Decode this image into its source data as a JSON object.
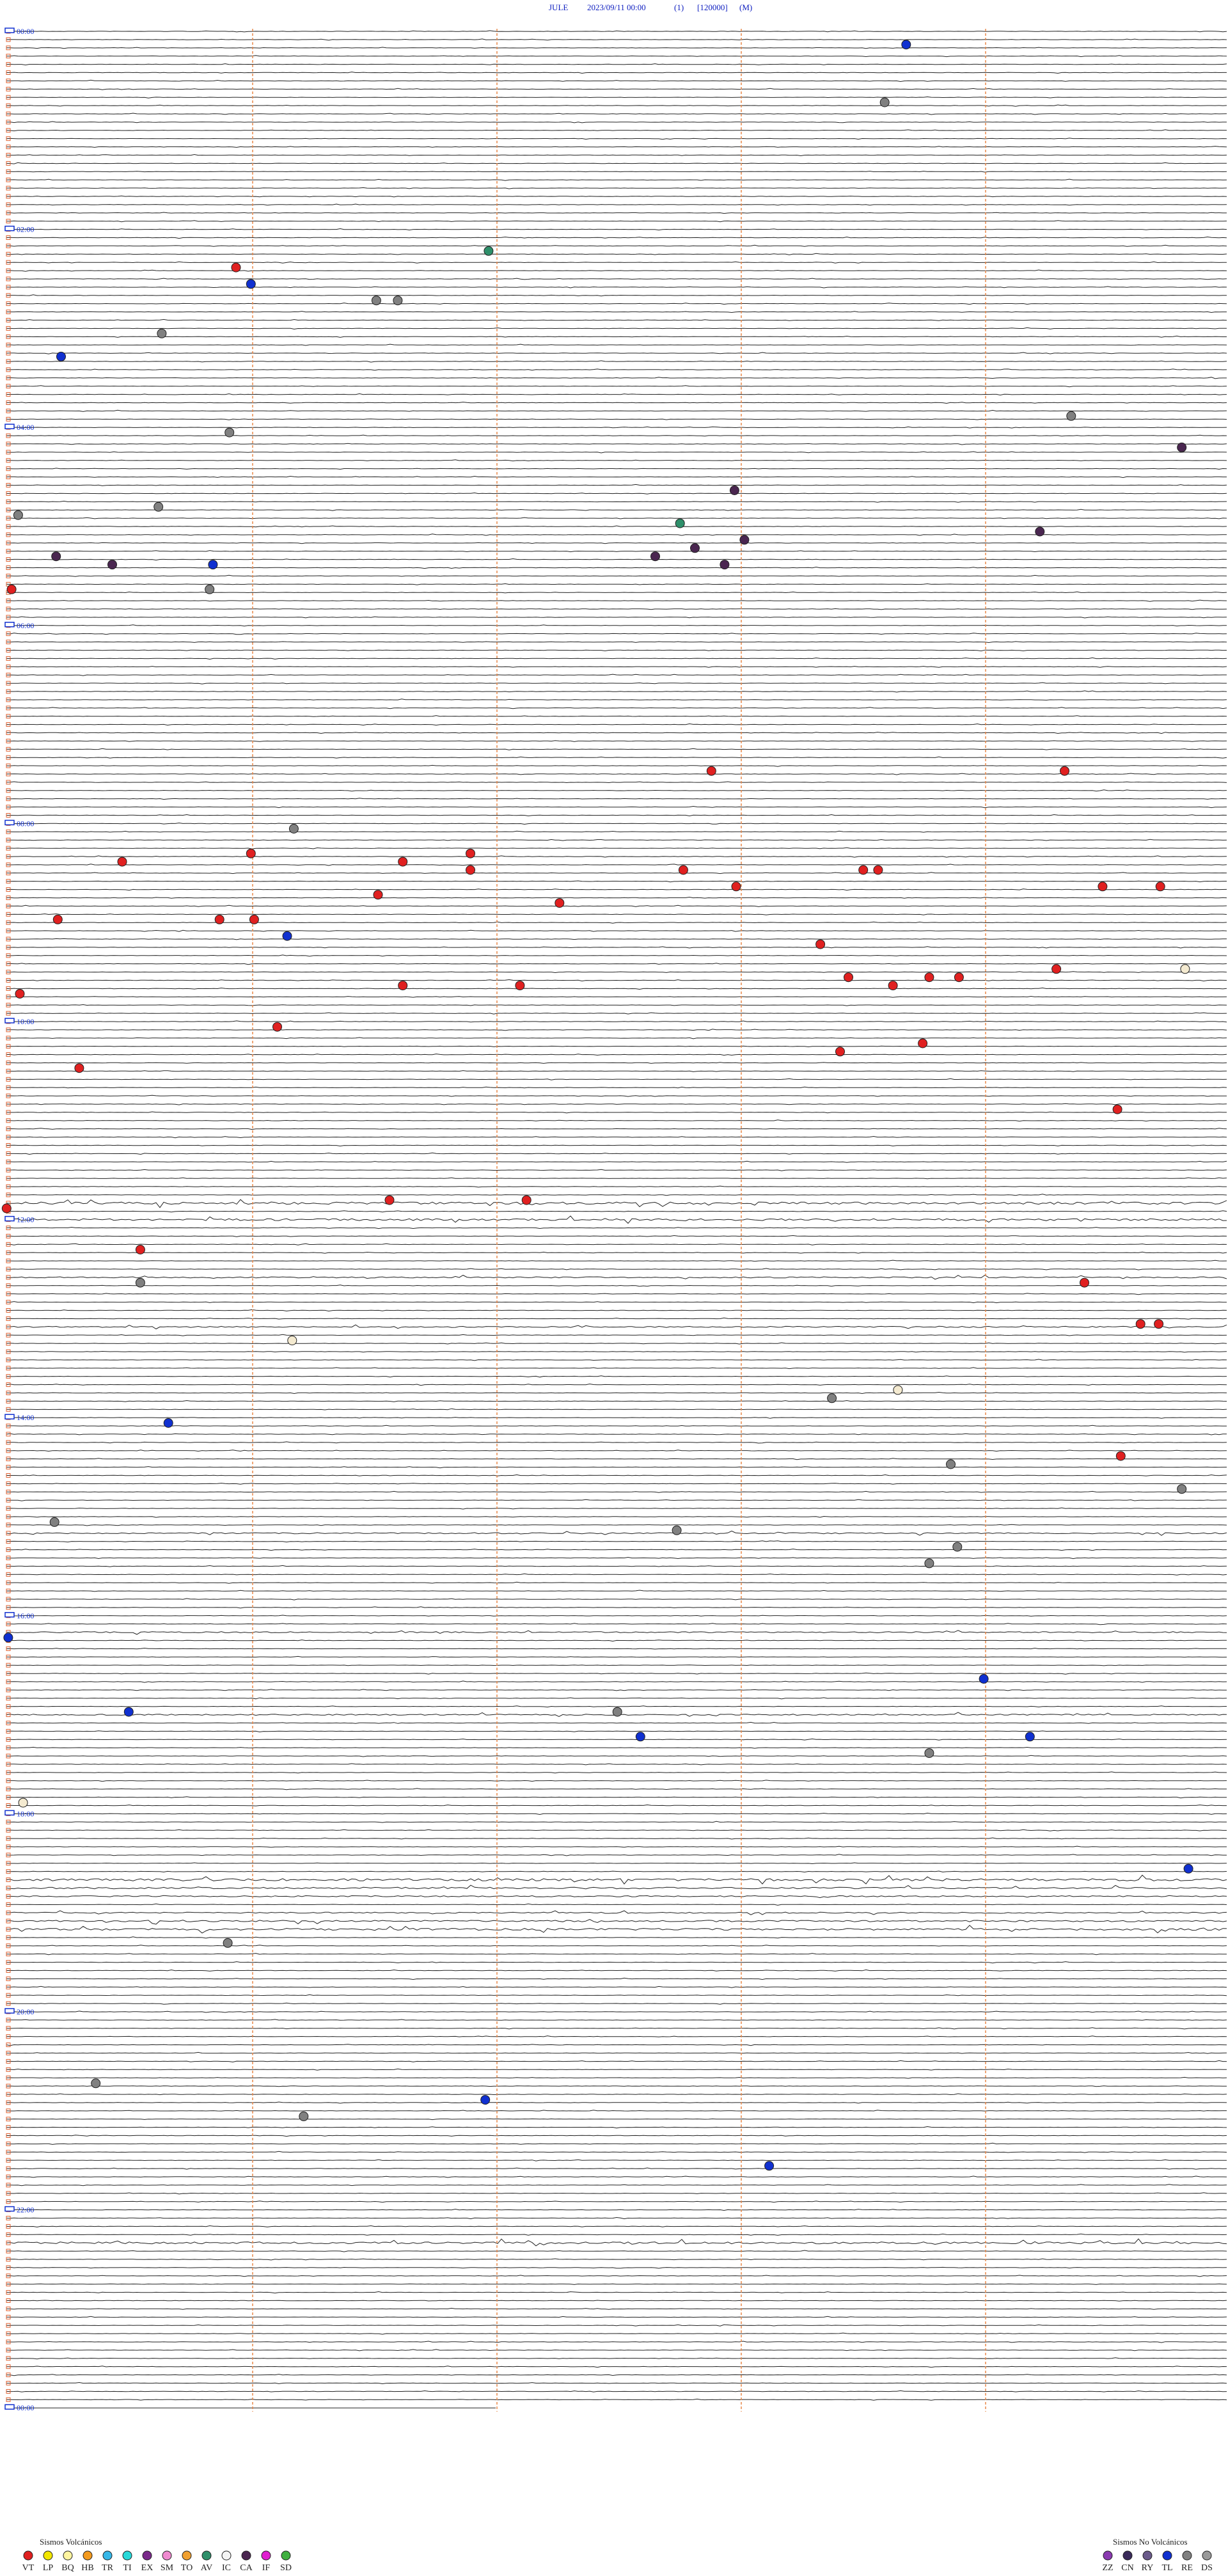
{
  "header": {
    "station": "JULE",
    "datetime": "2023/09/11 00:00",
    "channel": "(1)",
    "scale": "[120000]",
    "mode": "(M)"
  },
  "hour_labels": [
    "00:00",
    "02:00",
    "04:00",
    "06:00",
    "08:00",
    "10:00",
    "12:00",
    "14:00",
    "16:00",
    "18:00",
    "20:00",
    "22:00",
    "00:00"
  ],
  "legend": {
    "volcanic": {
      "title": "Sismos Volcánicos",
      "items": [
        {
          "code": "VT",
          "color": "#e02020"
        },
        {
          "code": "LP",
          "color": "#f2e600"
        },
        {
          "code": "BQ",
          "color": "#fff5a0"
        },
        {
          "code": "HB",
          "color": "#f39a1e"
        },
        {
          "code": "TR",
          "color": "#36b7e8"
        },
        {
          "code": "TI",
          "color": "#27d9d9"
        },
        {
          "code": "EX",
          "color": "#7a2a8a"
        },
        {
          "code": "SM",
          "color": "#f08ad0"
        },
        {
          "code": "TO",
          "color": "#f0a030"
        },
        {
          "code": "AV",
          "color": "#2e8f6a"
        },
        {
          "code": "IC",
          "color": "#f4f4f4"
        },
        {
          "code": "CA",
          "color": "#4a2650"
        },
        {
          "code": "IF",
          "color": "#e020d0"
        },
        {
          "code": "SD",
          "color": "#40b040"
        }
      ]
    },
    "non_volcanic": {
      "title": "Sismos No Volcánicos",
      "items": [
        {
          "code": "ZZ",
          "color": "#8a3ab0"
        },
        {
          "code": "CN",
          "color": "#3a2a5a"
        },
        {
          "code": "RY",
          "color": "#6a5a8a"
        },
        {
          "code": "TL",
          "color": "#1030d0"
        },
        {
          "code": "RE",
          "color": "#808080"
        },
        {
          "code": "DS",
          "color": "#9a9a9a"
        }
      ]
    }
  }
}
